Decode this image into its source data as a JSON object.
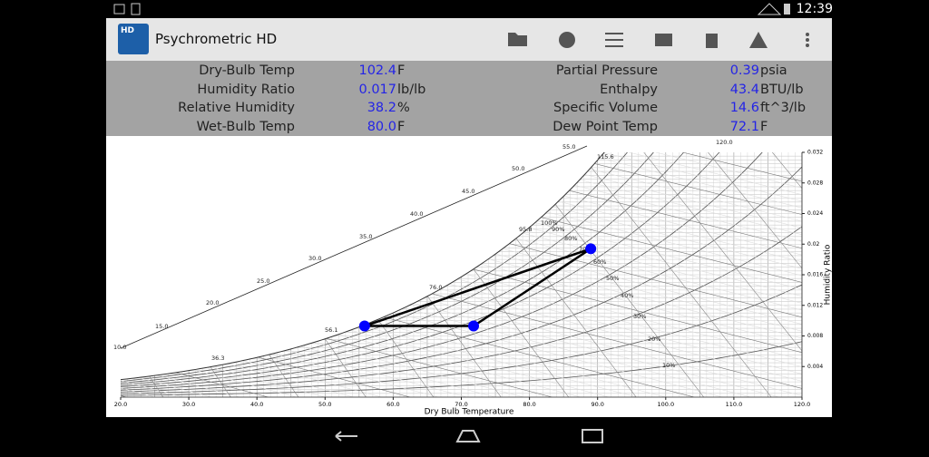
{
  "status_bar": {
    "time": "12:39"
  },
  "app_bar": {
    "title": "Psychrometric HD",
    "icon_text": "HD"
  },
  "readouts": {
    "left": [
      {
        "label": "Dry-Bulb Temp",
        "value": "102.4",
        "unit": "F"
      },
      {
        "label": "Humidity Ratio",
        "value": "0.017",
        "unit": "lb/lb"
      },
      {
        "label": "Relative Humidity",
        "value": "38.2",
        "unit": "%"
      },
      {
        "label": "Wet-Bulb Temp",
        "value": "80.0",
        "unit": "F"
      }
    ],
    "right": [
      {
        "label": "Partial Pressure",
        "value": "0.39",
        "unit": "psia"
      },
      {
        "label": "Enthalpy",
        "value": "43.4",
        "unit": "BTU/lb"
      },
      {
        "label": "Specific Volume",
        "value": "14.6",
        "unit": "ft^3/lb"
      },
      {
        "label": "Dew Point Temp",
        "value": "72.1",
        "unit": "F"
      }
    ]
  },
  "chart_data": {
    "type": "scatter",
    "x_label": "Dry Bulb Temperature",
    "y_label": "Humidity Ratio",
    "xlim": [
      20,
      120
    ],
    "ylim": [
      0,
      0.032
    ],
    "xticks": [
      {
        "value": 20,
        "label": "20.0"
      },
      {
        "value": 30,
        "label": "30.0"
      },
      {
        "value": 40,
        "label": "40.0"
      },
      {
        "value": 50,
        "label": "50.0"
      },
      {
        "value": 60,
        "label": "60.0"
      },
      {
        "value": 70,
        "label": "70.0"
      },
      {
        "value": 80,
        "label": "80.0"
      },
      {
        "value": 90,
        "label": "90.0"
      },
      {
        "value": 100,
        "label": "100.0"
      },
      {
        "value": 110,
        "label": "110.0"
      },
      {
        "value": 120,
        "label": "120.0"
      }
    ],
    "yticks": [
      0.004,
      0.008,
      0.012,
      0.016,
      0.02,
      0.024,
      0.028,
      0.032
    ],
    "series": [
      {
        "color": "#0000ff",
        "x": [
          55.8,
          71.8,
          89.0
        ],
        "values": [
          0.0093,
          0.0093,
          0.0194
        ]
      }
    ],
    "annotations": [
      "10.0",
      "15.0",
      "20.0",
      "25.0",
      "30.0",
      "35.0",
      "40.0",
      "45.0",
      "50.0",
      "55.0",
      "36.3",
      "56.1",
      "76.0",
      "95.8",
      "115.6",
      "100%",
      "90%",
      "80%",
      "70%",
      "60%",
      "50%",
      "40%",
      "30%",
      "20%",
      "10%",
      "120.0"
    ]
  }
}
